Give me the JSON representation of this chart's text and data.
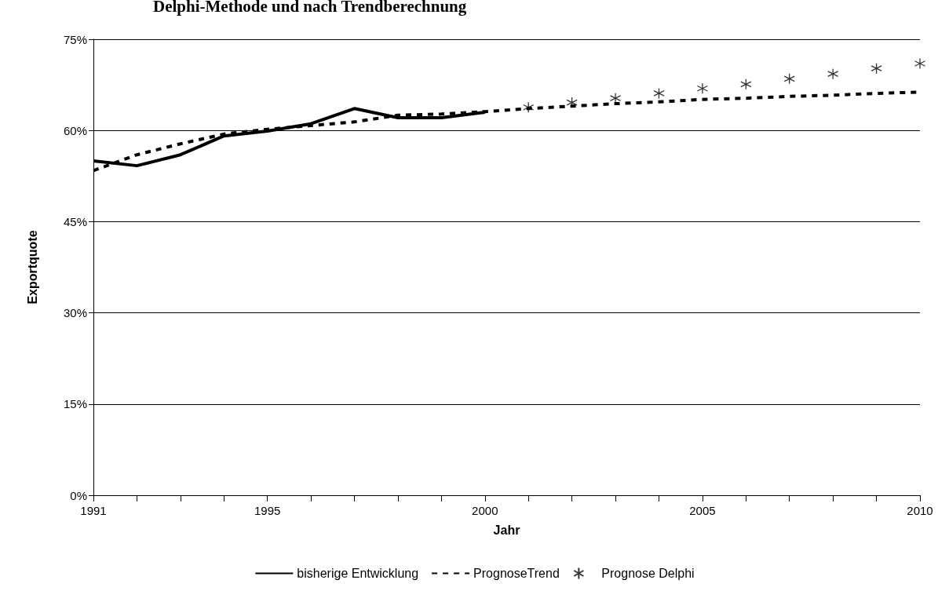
{
  "chart_data": {
    "type": "line",
    "title": "Delphi-Methode und nach Trendberechnung",
    "xlabel": "Jahr",
    "ylabel": "Exportquote",
    "xlim": [
      1991,
      2010
    ],
    "xticks": [
      1991,
      {
        "value": 1992,
        "label": null
      },
      {
        "value": 1993,
        "label": null
      },
      {
        "value": 1994,
        "label": null
      },
      1995,
      {
        "value": 1996,
        "label": null
      },
      {
        "value": 1997,
        "label": null
      },
      {
        "value": 1998,
        "label": null
      },
      {
        "value": 1999,
        "label": null
      },
      2000,
      {
        "value": 2001,
        "label": null
      },
      {
        "value": 2002,
        "label": null
      },
      {
        "value": 2003,
        "label": null
      },
      {
        "value": 2004,
        "label": null
      },
      2005,
      {
        "value": 2006,
        "label": null
      },
      {
        "value": 2007,
        "label": null
      },
      {
        "value": 2008,
        "label": null
      },
      {
        "value": 2009,
        "label": null
      },
      2010
    ],
    "ylim": [
      0,
      75
    ],
    "yticks": [
      {
        "value": 0,
        "label": "0%"
      },
      {
        "value": 15,
        "label": "15%"
      },
      {
        "value": 30,
        "label": "30%"
      },
      {
        "value": 45,
        "label": "45%"
      },
      {
        "value": 60,
        "label": "60%"
      },
      {
        "value": 75,
        "label": "75%"
      }
    ],
    "grid": "y",
    "legend": "bottom",
    "series": [
      {
        "name": "bisherige Entwicklung",
        "color": "#000000",
        "line_style": "solid",
        "marker": "none",
        "x": [
          1991,
          1992,
          1993,
          1994,
          1995,
          1996,
          1997,
          1998,
          1999,
          2000
        ],
        "values": [
          55.0,
          54.2,
          56.0,
          59.1,
          59.9,
          61.1,
          63.6,
          62.1,
          62.1,
          63.0
        ]
      },
      {
        "name": "PrognoseTrend",
        "color": "#000000",
        "line_style": "dashed",
        "marker": "none",
        "x": [
          1991,
          1992,
          1993,
          1994,
          1995,
          1996,
          1997,
          1998,
          1999,
          2000,
          2001,
          2002,
          2003,
          2004,
          2005,
          2006,
          2007,
          2008,
          2009,
          2010
        ],
        "values": [
          53.4,
          56.0,
          57.8,
          59.4,
          60.2,
          60.8,
          61.4,
          62.5,
          62.7,
          63.1,
          63.6,
          64.0,
          64.4,
          64.7,
          65.1,
          65.3,
          65.6,
          65.8,
          66.1,
          66.3
        ]
      },
      {
        "name": "Prognose Delphi",
        "type": "scatter",
        "color": "#000000",
        "marker": "cross",
        "x": [
          2001,
          2002,
          2003,
          2004,
          2005,
          2006,
          2007,
          2008,
          2009,
          2010
        ],
        "values": [
          63.8,
          64.6,
          65.3,
          66.1,
          66.9,
          67.6,
          68.5,
          69.3,
          70.2,
          71.0
        ]
      }
    ]
  }
}
